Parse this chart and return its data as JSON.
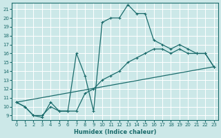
{
  "xlabel": "Humidex (Indice chaleur)",
  "bg_color": "#cce8e8",
  "line_color": "#1a6b6b",
  "grid_color": "#ffffff",
  "xlim": [
    -0.5,
    23.5
  ],
  "ylim": [
    8.5,
    21.7
  ],
  "xticks": [
    0,
    1,
    2,
    3,
    4,
    5,
    6,
    7,
    8,
    9,
    10,
    11,
    12,
    13,
    14,
    15,
    16,
    17,
    18,
    19,
    20,
    21,
    22,
    23
  ],
  "yticks": [
    9,
    10,
    11,
    12,
    13,
    14,
    15,
    16,
    17,
    18,
    19,
    20,
    21
  ],
  "line1_x": [
    0,
    1,
    2,
    3,
    4,
    5,
    6,
    7,
    8,
    9,
    10,
    11,
    12,
    13,
    14,
    15,
    16,
    17,
    18,
    19,
    20,
    21,
    22,
    23
  ],
  "line1_y": [
    10.5,
    10.0,
    9.0,
    8.8,
    10.5,
    9.5,
    9.5,
    16.0,
    13.5,
    9.5,
    19.5,
    20.0,
    20.0,
    21.5,
    20.5,
    20.5,
    17.5,
    17.0,
    16.5,
    17.0,
    16.5,
    16.0,
    16.0,
    14.5
  ],
  "line2_x": [
    0,
    1,
    2,
    3,
    4,
    5,
    6,
    7,
    8,
    9,
    10,
    11,
    12,
    13,
    14,
    15,
    16,
    17,
    18,
    19,
    20,
    21,
    22,
    23
  ],
  "line2_y": [
    10.5,
    10.0,
    9.0,
    9.0,
    10.0,
    9.5,
    9.5,
    9.5,
    11.5,
    12.0,
    13.0,
    13.5,
    14.0,
    15.0,
    15.5,
    16.0,
    16.5,
    16.5,
    16.0,
    16.5,
    16.0,
    16.0,
    16.0,
    14.5
  ],
  "line3_x": [
    0,
    23
  ],
  "line3_y": [
    10.5,
    14.5
  ]
}
